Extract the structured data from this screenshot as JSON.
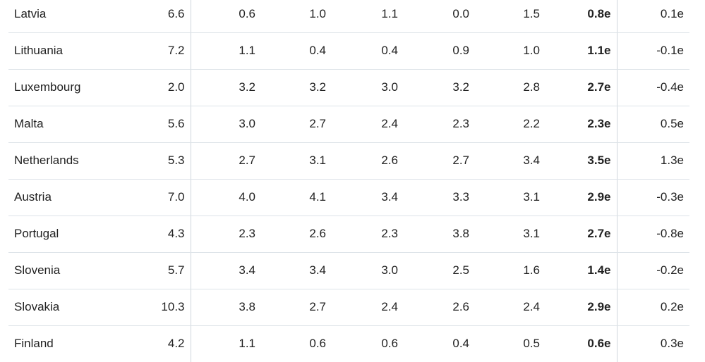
{
  "table": {
    "rows": [
      {
        "country": "Latvia",
        "values": [
          "6.6",
          "0.6",
          "1.0",
          "1.1",
          "0.0",
          "1.5",
          "0.8e",
          "0.1e"
        ]
      },
      {
        "country": "Lithuania",
        "values": [
          "7.2",
          "1.1",
          "0.4",
          "0.4",
          "0.9",
          "1.0",
          "1.1e",
          "-0.1e"
        ]
      },
      {
        "country": "Luxembourg",
        "values": [
          "2.0",
          "3.2",
          "3.2",
          "3.0",
          "3.2",
          "2.8",
          "2.7e",
          "-0.4e"
        ]
      },
      {
        "country": "Malta",
        "values": [
          "5.6",
          "3.0",
          "2.7",
          "2.4",
          "2.3",
          "2.2",
          "2.3e",
          "0.5e"
        ]
      },
      {
        "country": "Netherlands",
        "values": [
          "5.3",
          "2.7",
          "3.1",
          "2.6",
          "2.7",
          "3.4",
          "3.5e",
          "1.3e"
        ]
      },
      {
        "country": "Austria",
        "values": [
          "7.0",
          "4.0",
          "4.1",
          "3.4",
          "3.3",
          "3.1",
          "2.9e",
          "-0.3e"
        ]
      },
      {
        "country": "Portugal",
        "values": [
          "4.3",
          "2.3",
          "2.6",
          "2.3",
          "3.8",
          "3.1",
          "2.7e",
          "-0.8e"
        ]
      },
      {
        "country": "Slovenia",
        "values": [
          "5.7",
          "3.4",
          "3.4",
          "3.0",
          "2.5",
          "1.6",
          "1.4e",
          "-0.2e"
        ]
      },
      {
        "country": "Slovakia",
        "values": [
          "10.3",
          "3.8",
          "2.7",
          "2.4",
          "2.6",
          "2.4",
          "2.9e",
          "0.2e"
        ]
      },
      {
        "country": "Finland",
        "values": [
          "4.2",
          "1.1",
          "0.6",
          "0.6",
          "0.4",
          "0.5",
          "0.6e",
          "0.3e"
        ]
      }
    ]
  }
}
